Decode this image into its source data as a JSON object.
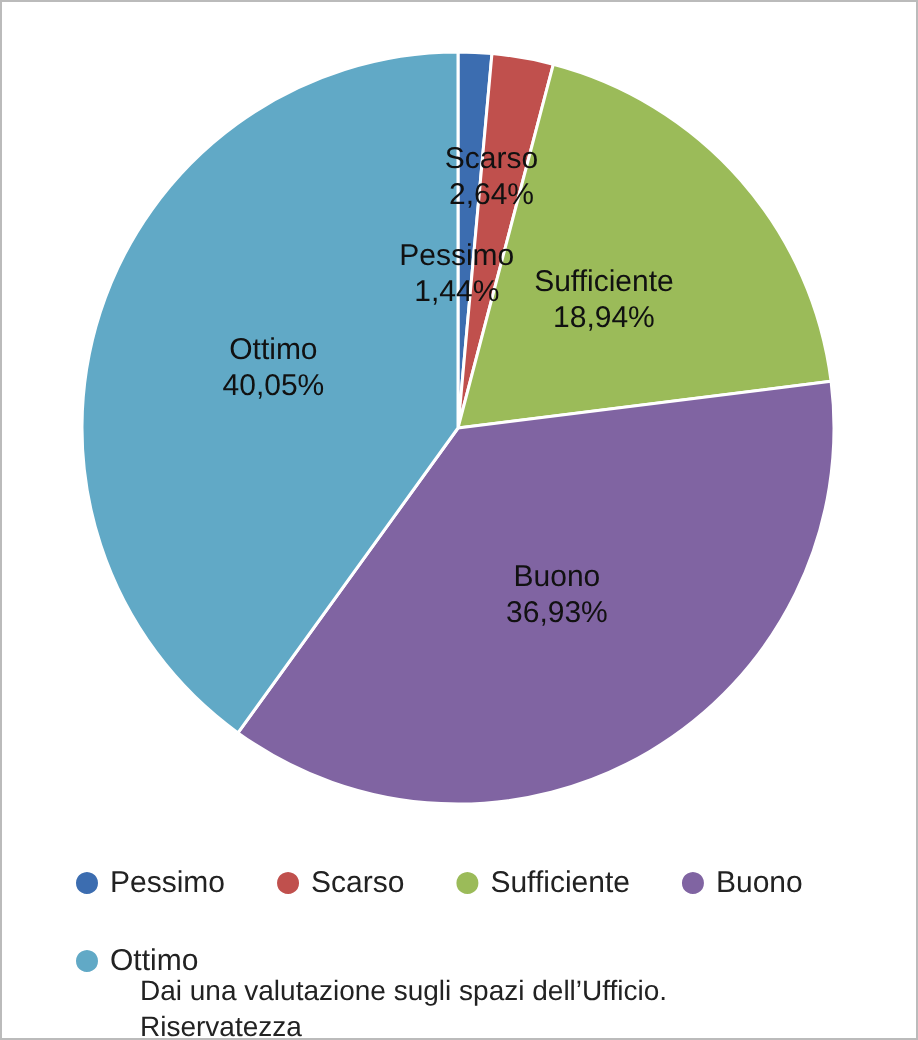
{
  "chart_data": {
    "type": "pie",
    "title": "Dai una valutazione sugli spazi dell’Ufficio. Riservatezza",
    "categories": [
      "Pessimo",
      "Scarso",
      "Sufficiente",
      "Buono",
      "Ottimo"
    ],
    "values": [
      1.44,
      2.64,
      18.94,
      36.93,
      40.05
    ],
    "value_labels": [
      "1,44%",
      "2,64%",
      "18,94%",
      "36,93%",
      "40,05%"
    ],
    "colors": [
      "#3c6db0",
      "#c0504d",
      "#9bbb59",
      "#8064a2",
      "#61a9c6"
    ],
    "legend": "bottom"
  }
}
